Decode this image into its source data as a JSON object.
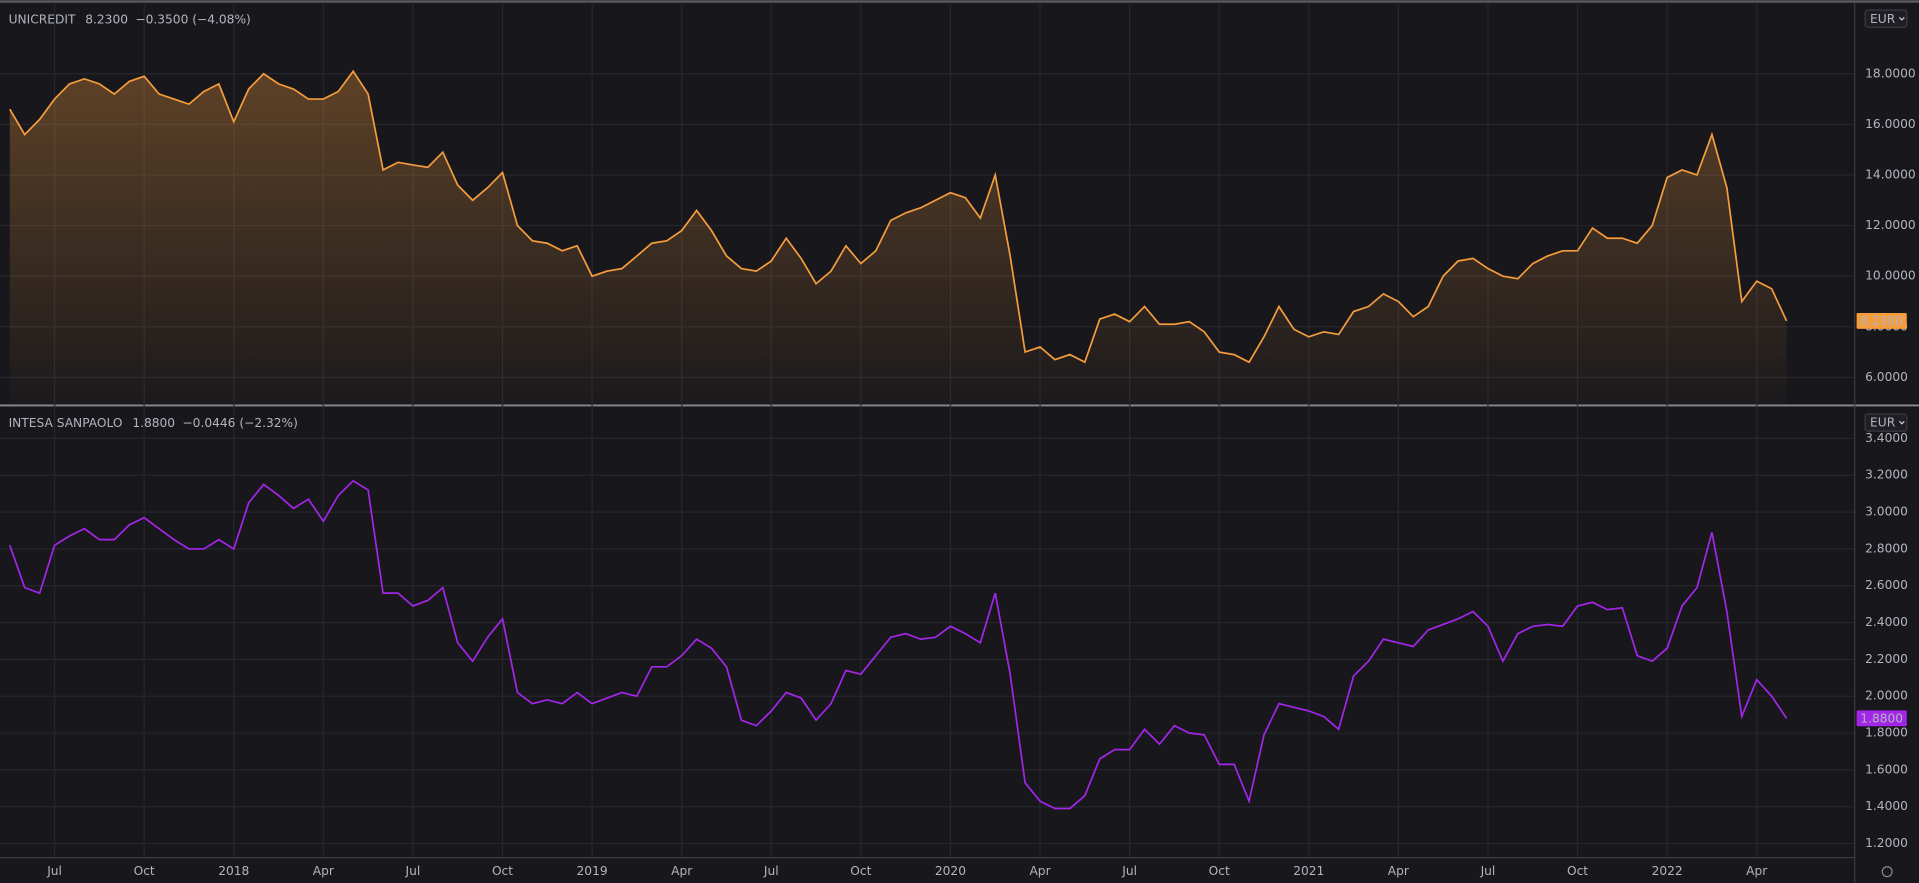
{
  "chart_data": [
    {
      "type": "line",
      "area": true,
      "currency": "EUR",
      "grid": true,
      "ylim": [
        4.94,
        20.76
      ],
      "yticks": [
        {
          "value": 6,
          "label": "6.0000"
        },
        {
          "value": 8,
          "label": "8.0000"
        },
        {
          "value": 10,
          "label": "10.0000"
        },
        {
          "value": 12,
          "label": "12.0000"
        },
        {
          "value": 14,
          "label": "14.0000"
        },
        {
          "value": 16,
          "label": "16.0000"
        },
        {
          "value": 18,
          "label": "18.0000"
        }
      ],
      "series": [
        {
          "name": "UNICREDIT",
          "color": "#f59c3c",
          "last_value_label": "8.2300",
          "change": "−0.3500 (−4.08%)",
          "values": [
            16.6,
            15.6,
            16.2,
            17.0,
            17.6,
            17.8,
            17.6,
            17.2,
            17.7,
            17.9,
            17.2,
            17.0,
            16.8,
            17.3,
            17.6,
            16.1,
            17.4,
            18.0,
            17.6,
            17.4,
            17.0,
            17.0,
            17.3,
            18.1,
            17.2,
            14.2,
            14.5,
            14.4,
            14.3,
            14.9,
            13.6,
            13.0,
            13.5,
            14.1,
            12.0,
            11.4,
            11.3,
            11.0,
            11.2,
            10.0,
            10.2,
            10.3,
            10.8,
            11.3,
            11.4,
            11.8,
            12.6,
            11.8,
            10.8,
            10.3,
            10.2,
            10.6,
            11.5,
            10.7,
            9.7,
            10.2,
            11.2,
            10.5,
            11.0,
            12.2,
            12.5,
            12.7,
            13.0,
            13.3,
            13.1,
            12.3,
            14.0,
            10.8,
            7.0,
            7.2,
            6.7,
            6.9,
            6.6,
            8.3,
            8.5,
            8.2,
            8.8,
            8.1,
            8.1,
            8.2,
            7.8,
            7.0,
            6.9,
            6.6,
            7.6,
            8.8,
            7.9,
            7.6,
            7.8,
            7.7,
            8.6,
            8.8,
            9.3,
            9.0,
            8.4,
            8.8,
            10.0,
            10.6,
            10.7,
            10.3,
            10.0,
            9.9,
            10.5,
            10.8,
            11.0,
            11.0,
            11.9,
            11.5,
            11.5,
            11.3,
            12.0,
            13.9,
            14.2,
            14.0,
            15.6,
            13.5,
            9.0,
            9.8,
            9.5,
            8.23
          ]
        }
      ]
    },
    {
      "type": "line",
      "area": false,
      "currency": "EUR",
      "grid": true,
      "ylim": [
        1.127,
        3.566
      ],
      "yticks": [
        {
          "value": 1.2,
          "label": "1.2000"
        },
        {
          "value": 1.4,
          "label": "1.4000"
        },
        {
          "value": 1.6,
          "label": "1.6000"
        },
        {
          "value": 1.8,
          "label": "1.8000"
        },
        {
          "value": 2.0,
          "label": "2.0000"
        },
        {
          "value": 2.2,
          "label": "2.2000"
        },
        {
          "value": 2.4,
          "label": "2.4000"
        },
        {
          "value": 2.6,
          "label": "2.6000"
        },
        {
          "value": 2.8,
          "label": "2.8000"
        },
        {
          "value": 3.0,
          "label": "3.0000"
        },
        {
          "value": 3.2,
          "label": "3.2000"
        },
        {
          "value": 3.4,
          "label": "3.4000"
        }
      ],
      "categories": [
        null,
        null,
        null,
        "Jul",
        null,
        null,
        null,
        null,
        null,
        "Oct",
        null,
        null,
        null,
        null,
        null,
        "2018",
        null,
        null,
        null,
        null,
        null,
        "Apr",
        null,
        null,
        null,
        null,
        null,
        "Jul",
        null,
        null,
        null,
        null,
        null,
        "Oct",
        null,
        null,
        null,
        null,
        null,
        "2019",
        null,
        null,
        null,
        null,
        null,
        "Apr",
        null,
        null,
        null,
        null,
        null,
        "Jul",
        null,
        null,
        null,
        null,
        null,
        "Oct",
        null,
        null,
        null,
        null,
        null,
        "2020",
        null,
        null,
        null,
        null,
        null,
        "Apr",
        null,
        null,
        null,
        null,
        null,
        "Jul",
        null,
        null,
        null,
        null,
        null,
        "Oct",
        null,
        null,
        null,
        null,
        null,
        "2021",
        null,
        null,
        null,
        null,
        null,
        "Apr",
        null,
        null,
        null,
        null,
        null,
        "Jul",
        null,
        null,
        null,
        null,
        null,
        "Oct",
        null,
        null,
        null,
        null,
        null,
        "2022",
        null,
        null,
        null,
        null,
        null,
        "Apr",
        null,
        null
      ],
      "series": [
        {
          "name": "INTESA SANPAOLO",
          "color": "#a326e8",
          "last_value_label": "1.8800",
          "change": "−0.0446 (−2.32%)",
          "values": [
            2.82,
            2.59,
            2.56,
            2.82,
            2.87,
            2.91,
            2.85,
            2.85,
            2.93,
            2.97,
            2.91,
            2.85,
            2.8,
            2.8,
            2.85,
            2.8,
            3.05,
            3.15,
            3.09,
            3.02,
            3.07,
            2.95,
            3.09,
            3.17,
            3.12,
            2.56,
            2.56,
            2.49,
            2.52,
            2.59,
            2.29,
            2.19,
            2.32,
            2.42,
            2.02,
            1.96,
            1.98,
            1.96,
            2.02,
            1.96,
            1.99,
            2.02,
            2.0,
            2.16,
            2.16,
            2.22,
            2.31,
            2.26,
            2.16,
            1.87,
            1.84,
            1.92,
            2.02,
            1.99,
            1.87,
            1.96,
            2.14,
            2.12,
            2.22,
            2.32,
            2.34,
            2.31,
            2.32,
            2.38,
            2.34,
            2.29,
            2.56,
            2.12,
            1.53,
            1.43,
            1.39,
            1.39,
            1.46,
            1.66,
            1.71,
            1.71,
            1.82,
            1.74,
            1.84,
            1.8,
            1.79,
            1.63,
            1.63,
            1.43,
            1.79,
            1.96,
            1.94,
            1.92,
            1.89,
            1.82,
            2.11,
            2.19,
            2.31,
            2.29,
            2.27,
            2.36,
            2.39,
            2.42,
            2.46,
            2.38,
            2.19,
            2.34,
            2.38,
            2.39,
            2.38,
            2.49,
            2.51,
            2.47,
            2.48,
            2.22,
            2.19,
            2.26,
            2.49,
            2.59,
            2.89,
            2.46,
            1.89,
            2.09,
            2.0,
            1.88
          ]
        }
      ]
    }
  ]
}
